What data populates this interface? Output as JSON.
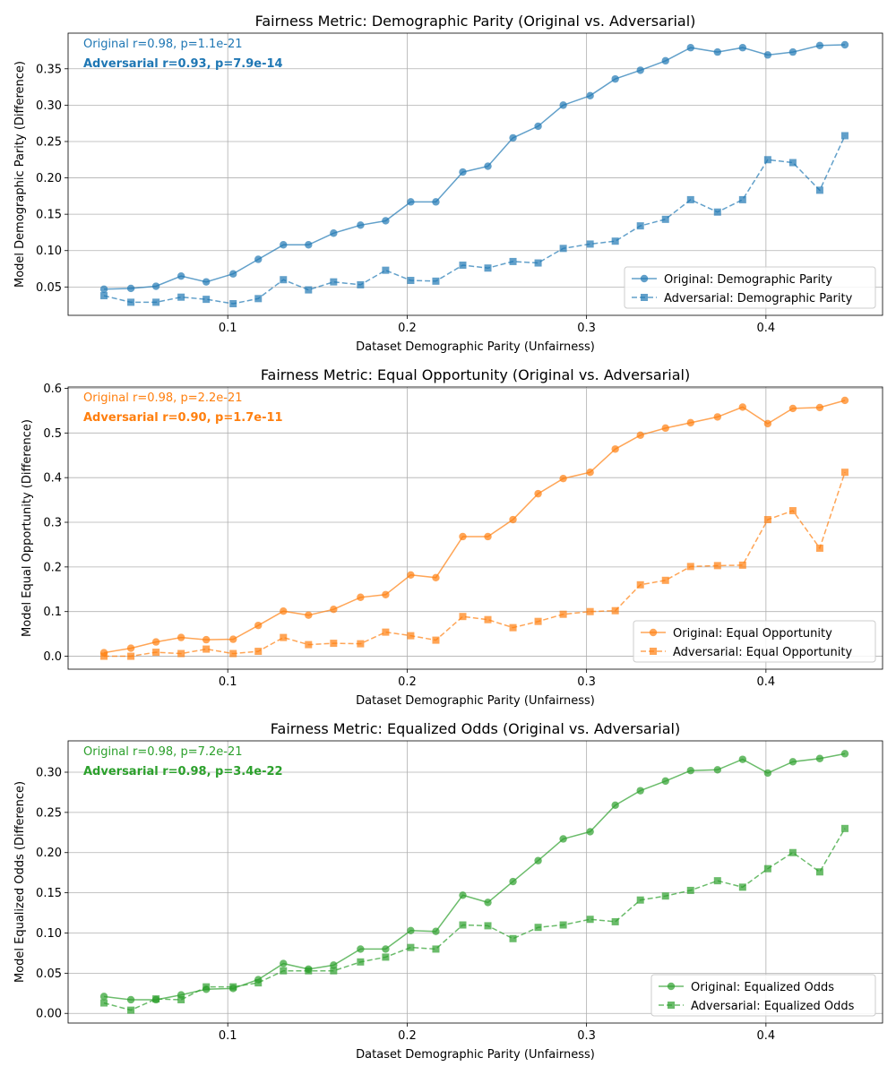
{
  "chart_data": [
    {
      "type": "line",
      "title": "Fairness Metric: Demographic Parity (Original vs. Adversarial)",
      "xlabel": "Dataset Demographic Parity (Unfairness)",
      "ylabel": "Model Demographic Parity (Difference)",
      "color": "#1f77b4",
      "xlim": [
        0.011,
        0.465
      ],
      "ylim": [
        0.011,
        0.399
      ],
      "xticks": [
        0.1,
        0.2,
        0.3,
        0.4
      ],
      "xtick_labels": [
        "0.1",
        "0.2",
        "0.3",
        "0.4"
      ],
      "yticks": [
        0.05,
        0.1,
        0.15,
        0.2,
        0.25,
        0.3,
        0.35
      ],
      "ytick_labels": [
        "0.05",
        "0.10",
        "0.15",
        "0.20",
        "0.25",
        "0.30",
        "0.35"
      ],
      "grid": true,
      "legend_position": "lower right",
      "annotations": [
        "Original r=0.98, p=1.1e-21",
        "Adversarial r=0.93, p=7.9e-14"
      ],
      "x": [
        0.031,
        0.046,
        0.06,
        0.074,
        0.088,
        0.103,
        0.117,
        0.131,
        0.145,
        0.159,
        0.174,
        0.188,
        0.202,
        0.216,
        0.231,
        0.245,
        0.259,
        0.273,
        0.287,
        0.302,
        0.316,
        0.33,
        0.344,
        0.358,
        0.373,
        0.387,
        0.401,
        0.415,
        0.43,
        0.444
      ],
      "series": [
        {
          "name": "Original: Demographic Parity",
          "style": "solid",
          "marker": "circle",
          "values": [
            0.047,
            0.048,
            0.051,
            0.065,
            0.057,
            0.068,
            0.088,
            0.108,
            0.108,
            0.124,
            0.135,
            0.141,
            0.167,
            0.167,
            0.208,
            0.216,
            0.255,
            0.271,
            0.3,
            0.313,
            0.336,
            0.348,
            0.361,
            0.379,
            0.373,
            0.379,
            0.369,
            0.373,
            0.382,
            0.383
          ]
        },
        {
          "name": "Adversarial: Demographic Parity",
          "style": "dashed",
          "marker": "square",
          "values": [
            0.038,
            0.029,
            0.029,
            0.036,
            0.033,
            0.027,
            0.034,
            0.06,
            0.046,
            0.057,
            0.053,
            0.073,
            0.059,
            0.058,
            0.08,
            0.076,
            0.085,
            0.083,
            0.103,
            0.109,
            0.113,
            0.134,
            0.143,
            0.17,
            0.153,
            0.17,
            0.225,
            0.221,
            0.183,
            0.258
          ]
        }
      ]
    },
    {
      "type": "line",
      "title": "Fairness Metric: Equal Opportunity (Original vs. Adversarial)",
      "xlabel": "Dataset Demographic Parity (Unfairness)",
      "ylabel": "Model Equal Opportunity (Difference)",
      "color": "#ff7f0e",
      "xlim": [
        0.011,
        0.465
      ],
      "ylim": [
        -0.029,
        0.603
      ],
      "xticks": [
        0.1,
        0.2,
        0.3,
        0.4
      ],
      "xtick_labels": [
        "0.1",
        "0.2",
        "0.3",
        "0.4"
      ],
      "yticks": [
        0.0,
        0.1,
        0.2,
        0.3,
        0.4,
        0.5,
        0.6
      ],
      "ytick_labels": [
        "0.0",
        "0.1",
        "0.2",
        "0.3",
        "0.4",
        "0.5",
        "0.6"
      ],
      "grid": true,
      "legend_position": "lower right",
      "annotations": [
        "Original r=0.98, p=2.2e-21",
        "Adversarial r=0.90, p=1.7e-11"
      ],
      "x": [
        0.031,
        0.046,
        0.06,
        0.074,
        0.088,
        0.103,
        0.117,
        0.131,
        0.145,
        0.159,
        0.174,
        0.188,
        0.202,
        0.216,
        0.231,
        0.245,
        0.259,
        0.273,
        0.287,
        0.302,
        0.316,
        0.33,
        0.344,
        0.358,
        0.373,
        0.387,
        0.401,
        0.415,
        0.43,
        0.444
      ],
      "series": [
        {
          "name": "Original: Equal Opportunity",
          "style": "solid",
          "marker": "circle",
          "values": [
            0.008,
            0.018,
            0.032,
            0.042,
            0.037,
            0.038,
            0.069,
            0.101,
            0.092,
            0.105,
            0.132,
            0.138,
            0.182,
            0.176,
            0.268,
            0.268,
            0.306,
            0.364,
            0.398,
            0.412,
            0.464,
            0.495,
            0.511,
            0.523,
            0.536,
            0.558,
            0.521,
            0.555,
            0.557,
            0.573
          ]
        },
        {
          "name": "Adversarial: Equal Opportunity",
          "style": "dashed",
          "marker": "square",
          "values": [
            0.0,
            0.0,
            0.009,
            0.006,
            0.016,
            0.006,
            0.011,
            0.042,
            0.026,
            0.029,
            0.028,
            0.054,
            0.046,
            0.036,
            0.089,
            0.082,
            0.064,
            0.078,
            0.094,
            0.1,
            0.102,
            0.16,
            0.17,
            0.201,
            0.203,
            0.204,
            0.306,
            0.326,
            0.242,
            0.412
          ]
        }
      ]
    },
    {
      "type": "line",
      "title": "Fairness Metric: Equalized Odds (Original vs. Adversarial)",
      "xlabel": "Dataset Demographic Parity (Unfairness)",
      "ylabel": "Model Equalized Odds (Difference)",
      "color": "#2ca02c",
      "xlim": [
        0.011,
        0.465
      ],
      "ylim": [
        -0.012,
        0.339
      ],
      "xticks": [
        0.1,
        0.2,
        0.3,
        0.4
      ],
      "xtick_labels": [
        "0.1",
        "0.2",
        "0.3",
        "0.4"
      ],
      "yticks": [
        0.0,
        0.05,
        0.1,
        0.15,
        0.2,
        0.25,
        0.3
      ],
      "ytick_labels": [
        "0.00",
        "0.05",
        "0.10",
        "0.15",
        "0.20",
        "0.25",
        "0.30"
      ],
      "grid": true,
      "legend_position": "lower right",
      "annotations": [
        "Original r=0.98, p=7.2e-21",
        "Adversarial r=0.98, p=3.4e-22"
      ],
      "x": [
        0.031,
        0.046,
        0.06,
        0.074,
        0.088,
        0.103,
        0.117,
        0.131,
        0.145,
        0.159,
        0.174,
        0.188,
        0.202,
        0.216,
        0.231,
        0.245,
        0.259,
        0.273,
        0.287,
        0.302,
        0.316,
        0.33,
        0.344,
        0.358,
        0.373,
        0.387,
        0.401,
        0.415,
        0.43,
        0.444
      ],
      "series": [
        {
          "name": "Original: Equalized Odds",
          "style": "solid",
          "marker": "circle",
          "values": [
            0.021,
            0.017,
            0.017,
            0.023,
            0.03,
            0.031,
            0.042,
            0.062,
            0.055,
            0.06,
            0.08,
            0.08,
            0.103,
            0.102,
            0.147,
            0.138,
            0.164,
            0.19,
            0.217,
            0.226,
            0.259,
            0.277,
            0.289,
            0.302,
            0.303,
            0.316,
            0.299,
            0.313,
            0.317,
            0.323
          ]
        },
        {
          "name": "Adversarial: Equalized Odds",
          "style": "dashed",
          "marker": "square",
          "values": [
            0.013,
            0.004,
            0.018,
            0.017,
            0.033,
            0.033,
            0.038,
            0.053,
            0.053,
            0.053,
            0.064,
            0.07,
            0.082,
            0.08,
            0.11,
            0.109,
            0.093,
            0.107,
            0.11,
            0.117,
            0.114,
            0.141,
            0.146,
            0.153,
            0.165,
            0.157,
            0.18,
            0.2,
            0.176,
            0.23
          ]
        }
      ]
    }
  ]
}
